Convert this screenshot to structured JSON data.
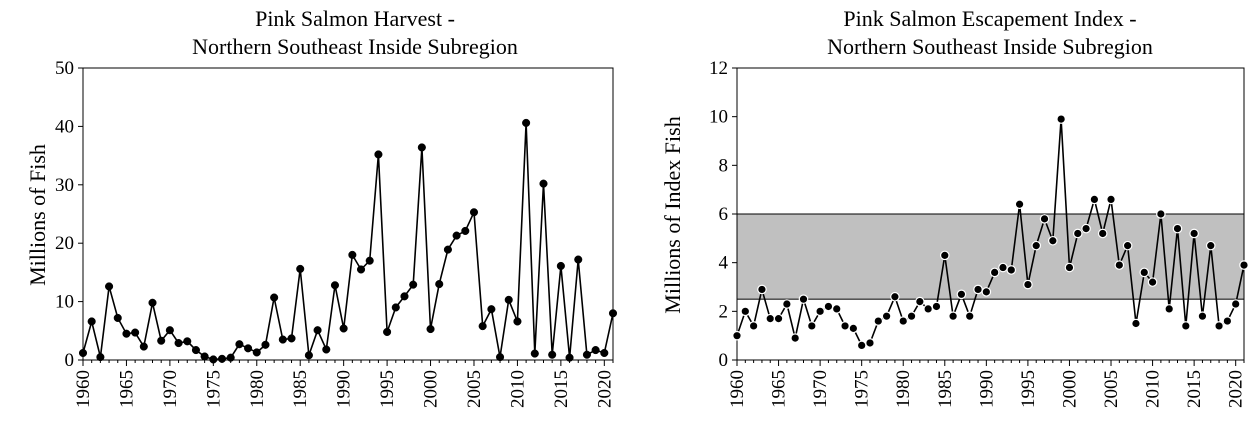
{
  "chart_data": [
    {
      "type": "line",
      "title": "Pink Salmon Harvest -",
      "subtitle": "Northern Southeast Inside Subregion",
      "xlabel": "",
      "ylabel": "Millions of Fish",
      "xlim": [
        1960,
        2021
      ],
      "ylim": [
        0,
        50
      ],
      "yticks": [
        0,
        10,
        20,
        30,
        40,
        50
      ],
      "xticks": [
        1960,
        1965,
        1970,
        1975,
        1980,
        1985,
        1990,
        1995,
        2000,
        2005,
        2010,
        2015,
        2020
      ],
      "grid": false,
      "colors": {
        "line": "#000000",
        "marker": "#000000"
      },
      "series": [
        {
          "x": [
            1960,
            1961,
            1962,
            1963,
            1964,
            1965,
            1966,
            1967,
            1968,
            1969,
            1970,
            1971,
            1972,
            1973,
            1974,
            1975,
            1976,
            1977,
            1978,
            1979,
            1980,
            1981,
            1982,
            1983,
            1984,
            1985,
            1986,
            1987,
            1988,
            1989,
            1990,
            1991,
            1992,
            1993,
            1994,
            1995,
            1996,
            1997,
            1998,
            1999,
            2000,
            2001,
            2002,
            2003,
            2004,
            2005,
            2006,
            2007,
            2008,
            2009,
            2010,
            2011,
            2012,
            2013,
            2014,
            2015,
            2016,
            2017,
            2018,
            2019,
            2020,
            2021
          ],
          "values": [
            1.2,
            6.6,
            0.5,
            12.6,
            7.2,
            4.5,
            4.7,
            2.3,
            9.8,
            3.3,
            5.1,
            2.9,
            3.2,
            1.7,
            0.6,
            0.1,
            0.2,
            0.4,
            2.7,
            2.0,
            1.3,
            2.6,
            10.7,
            3.5,
            3.7,
            15.6,
            0.8,
            5.1,
            1.8,
            12.8,
            5.4,
            18.0,
            15.5,
            17.0,
            35.2,
            4.8,
            9.0,
            10.9,
            12.9,
            36.4,
            5.3,
            13.0,
            18.9,
            21.3,
            22.1,
            25.3,
            5.8,
            8.7,
            0.5,
            10.3,
            6.6,
            40.6,
            1.1,
            30.2,
            0.9,
            16.1,
            0.4,
            17.2,
            0.9,
            1.7,
            1.2,
            8.0
          ]
        }
      ]
    },
    {
      "type": "line",
      "title": "Pink Salmon Escapement Index -",
      "subtitle": "Northern Southeast Inside Subregion",
      "xlabel": "",
      "ylabel": "Millions of Index Fish",
      "xlim": [
        1960,
        2021
      ],
      "ylim": [
        0,
        12
      ],
      "yticks": [
        0,
        2,
        4,
        6,
        8,
        10,
        12
      ],
      "xticks": [
        1960,
        1965,
        1970,
        1975,
        1980,
        1985,
        1990,
        1995,
        2000,
        2005,
        2010,
        2015,
        2020
      ],
      "band": [
        2.5,
        6.0
      ],
      "grid": false,
      "colors": {
        "line": "#000000",
        "marker_fill": "#000000",
        "marker_stroke": "#ffffff",
        "band": "#c0c0c0"
      },
      "series": [
        {
          "x": [
            1960,
            1961,
            1962,
            1963,
            1964,
            1965,
            1966,
            1967,
            1968,
            1969,
            1970,
            1971,
            1972,
            1973,
            1974,
            1975,
            1976,
            1977,
            1978,
            1979,
            1980,
            1981,
            1982,
            1983,
            1984,
            1985,
            1986,
            1987,
            1988,
            1989,
            1990,
            1991,
            1992,
            1993,
            1994,
            1995,
            1996,
            1997,
            1998,
            1999,
            2000,
            2001,
            2002,
            2003,
            2004,
            2005,
            2006,
            2007,
            2008,
            2009,
            2010,
            2011,
            2012,
            2013,
            2014,
            2015,
            2016,
            2017,
            2018,
            2019,
            2020,
            2021
          ],
          "values": [
            1.0,
            2.0,
            1.4,
            2.9,
            1.7,
            1.7,
            2.3,
            0.9,
            2.5,
            1.4,
            2.0,
            2.2,
            2.1,
            1.4,
            1.3,
            0.6,
            0.7,
            1.6,
            1.8,
            2.6,
            1.6,
            1.8,
            2.4,
            2.1,
            2.2,
            4.3,
            1.8,
            2.7,
            1.8,
            2.9,
            2.8,
            3.6,
            3.8,
            3.7,
            6.4,
            3.1,
            4.7,
            5.8,
            4.9,
            9.9,
            3.8,
            5.2,
            5.4,
            6.6,
            5.2,
            6.6,
            3.9,
            4.7,
            1.5,
            3.6,
            3.2,
            6.0,
            2.1,
            5.4,
            1.4,
            5.2,
            1.8,
            4.7,
            1.4,
            1.6,
            2.3,
            3.9
          ]
        }
      ]
    }
  ]
}
